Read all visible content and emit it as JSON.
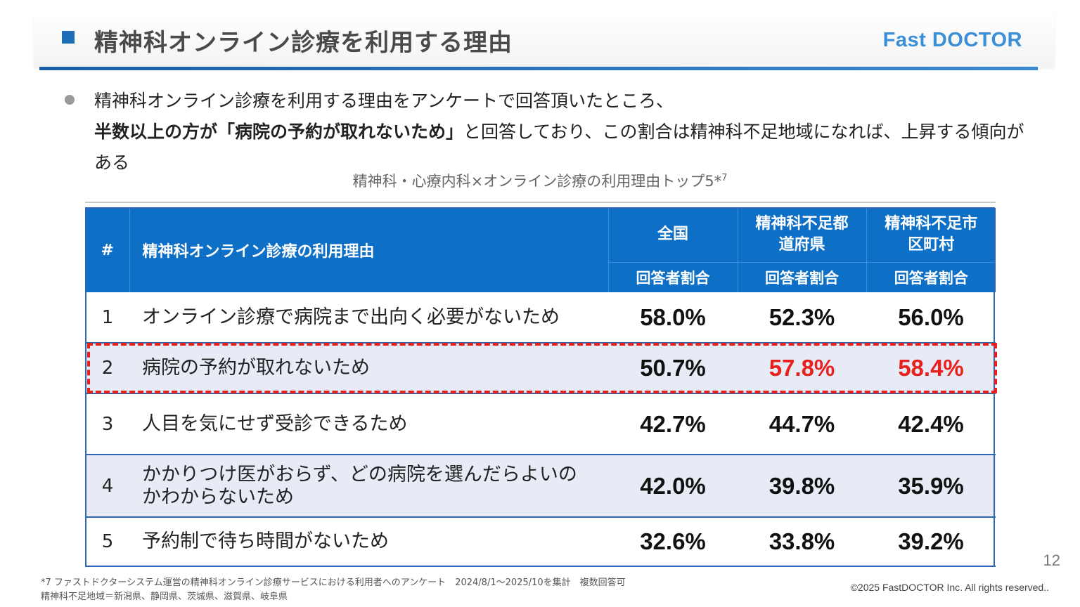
{
  "header": {
    "title": "精神科オンライン診療を利用する理由",
    "logo_text": "Fast DOCTOR",
    "accent_color": "#1f6fb8"
  },
  "lead": {
    "text_before": "精神科オンライン診療を利用する理由をアンケートで回答頂いたところ、",
    "text_bold": "半数以上の方が「病院の予約が取れないため」",
    "text_after": "と回答しており、この割合は精神科不足地域になれば、上昇する傾向がある"
  },
  "chart_caption": {
    "text": "精神科・心療内科×オンライン診療の利用理由トップ5*",
    "note_ref": "7"
  },
  "table": {
    "header_num": "#",
    "header_reason": "精神科オンライン診療の利用理由",
    "groups": [
      {
        "label": "全国",
        "sub": "回答者割合"
      },
      {
        "label": "精神科不足都道府県",
        "sub": "回答者割合"
      },
      {
        "label": "精神科不足市区町村",
        "sub": "回答者割合"
      }
    ],
    "rows": [
      {
        "num": "1",
        "reason": "オンライン診療で病院まで出向く必要がないため",
        "values": [
          "58.0%",
          "52.3%",
          "56.0%"
        ]
      },
      {
        "num": "2",
        "reason": "病院の予約が取れないため",
        "values": [
          "50.7%",
          "57.8%",
          "58.4%"
        ]
      },
      {
        "num": "3",
        "reason": "人目を気にせず受診できるため",
        "values": [
          "42.7%",
          "44.7%",
          "42.4%"
        ]
      },
      {
        "num": "4",
        "reason": "かかりつけ医がおらず、どの病院を選んだらよいのかわからないため",
        "values": [
          "42.0%",
          "39.8%",
          "35.9%"
        ]
      },
      {
        "num": "5",
        "reason": "予約制で待ち時間がないため",
        "values": [
          "32.6%",
          "33.8%",
          "39.2%"
        ]
      }
    ],
    "highlight_color": "#e8211f",
    "header_color": "#0d6fc6",
    "alt_row_color": "#e6ebf5"
  },
  "page_number": "12",
  "footnote": {
    "line1": "*7 ファストドクターシステム運営の精神科オンライン診療サービスにおける利用者へのアンケート　2024/8/1～2025/10を集計　複数回答可",
    "line2": "精神科不足地域＝新潟県、静岡県、茨城県、滋賀県、岐阜県"
  },
  "copyright": "©2025 FastDOCTOR Inc. All rights reserved.."
}
